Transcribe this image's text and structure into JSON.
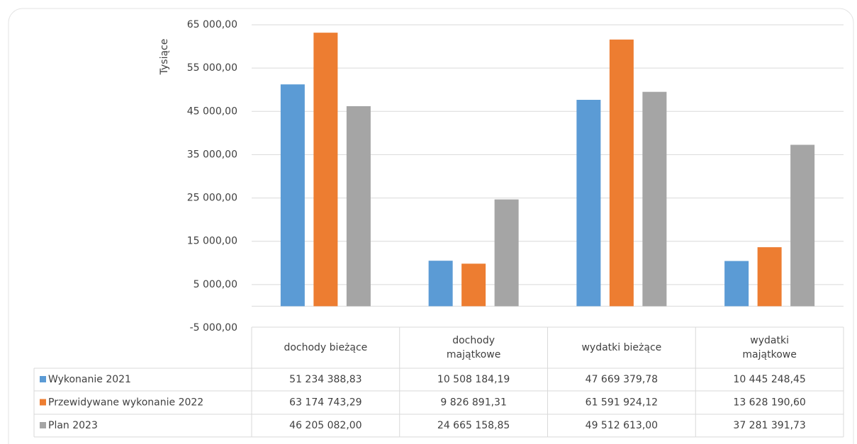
{
  "chart_data": {
    "type": "bar",
    "y_axis_label": "Tysiące",
    "categories": [
      "dochody bieżące",
      "dochody majątkowe",
      "wydatki bieżące",
      "wydatki majątkowe"
    ],
    "series": [
      {
        "name": "Wykonanie 2021",
        "color": "#5b9bd5",
        "values": [
          51234.38883,
          10508.18419,
          47669.37978,
          10445.24845
        ],
        "value_labels": [
          "51 234 388,83",
          "10 508 184,19",
          "47 669 379,78",
          "10 445 248,45"
        ]
      },
      {
        "name": "Przewidywane wykonanie 2022",
        "color": "#ed7d31",
        "values": [
          63174.74329,
          9826.89131,
          61591.92412,
          13628.1906
        ],
        "value_labels": [
          "63 174 743,29",
          "9 826 891,31",
          "61 591 924,12",
          "13 628 190,60"
        ]
      },
      {
        "name": "Plan 2023",
        "color": "#a5a5a5",
        "values": [
          46205.082,
          24665.15885,
          49512.613,
          37281.39173
        ],
        "value_labels": [
          "46 205 082,00",
          "24 665 158,85",
          "49 512 613,00",
          "37 281 391,73"
        ]
      }
    ],
    "ylim": [
      -5000,
      65000
    ],
    "yticks": [
      {
        "value": -5000,
        "label": "-5 000,00"
      },
      {
        "value": 5000,
        "label": "5 000,00"
      },
      {
        "value": 15000,
        "label": "15 000,00"
      },
      {
        "value": 25000,
        "label": "25 000,00"
      },
      {
        "value": 35000,
        "label": "35 000,00"
      },
      {
        "value": 45000,
        "label": "45 000,00"
      },
      {
        "value": 55000,
        "label": "55 000,00"
      },
      {
        "value": 65000,
        "label": "65 000,00"
      }
    ],
    "grid": true,
    "data_table": true
  }
}
